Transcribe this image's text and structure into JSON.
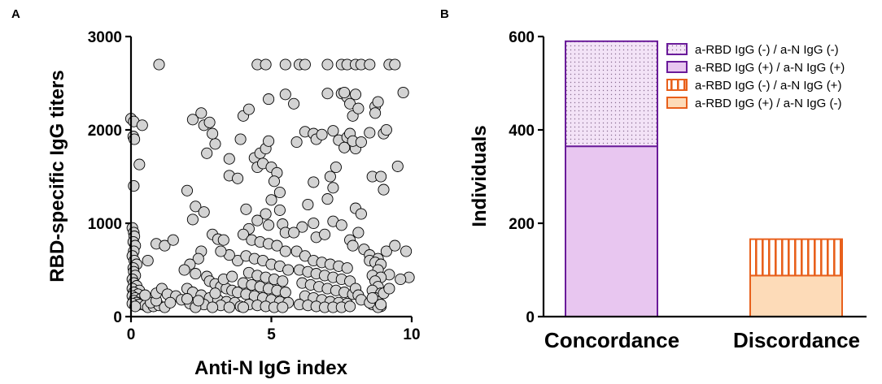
{
  "chart_data": [
    {
      "panel": "A",
      "type": "scatter",
      "xlabel": "Anti-N IgG index",
      "ylabel": "RBD-specific IgG titers",
      "xlim": [
        0,
        10
      ],
      "ylim": [
        0,
        3000
      ],
      "xticks": [
        0,
        5,
        10
      ],
      "yticks": [
        0,
        1000,
        2000,
        3000
      ],
      "points": [
        [
          0,
          2120
        ],
        [
          0.1,
          2090
        ],
        [
          0.08,
          1930
        ],
        [
          0.12,
          1900
        ],
        [
          0.4,
          2050
        ],
        [
          0.3,
          1630
        ],
        [
          0.1,
          1400
        ],
        [
          0.05,
          950
        ],
        [
          0.1,
          900
        ],
        [
          0.12,
          860
        ],
        [
          0.08,
          800
        ],
        [
          0.15,
          760
        ],
        [
          0.1,
          700
        ],
        [
          0.05,
          650
        ],
        [
          0.12,
          600
        ],
        [
          0.2,
          560
        ],
        [
          0.08,
          520
        ],
        [
          0.1,
          480
        ],
        [
          0.15,
          440
        ],
        [
          0.05,
          400
        ],
        [
          0.1,
          360
        ],
        [
          0.2,
          330
        ],
        [
          0.05,
          300
        ],
        [
          0.3,
          280
        ],
        [
          0.1,
          260
        ],
        [
          0.25,
          240
        ],
        [
          0.05,
          220
        ],
        [
          0.15,
          200
        ],
        [
          0.35,
          190
        ],
        [
          0.1,
          170
        ],
        [
          0.4,
          160
        ],
        [
          0.2,
          150
        ],
        [
          0.05,
          140
        ],
        [
          0.3,
          130
        ],
        [
          0.5,
          120
        ],
        [
          0.15,
          110
        ],
        [
          0.6,
          100
        ],
        [
          0.8,
          110
        ],
        [
          1.0,
          120
        ],
        [
          1.2,
          100
        ],
        [
          0.7,
          150
        ],
        [
          0.9,
          170
        ],
        [
          0.6,
          600
        ],
        [
          0.5,
          230
        ],
        [
          0.9,
          250
        ],
        [
          1.1,
          300
        ],
        [
          0.9,
          780
        ],
        [
          1.2,
          760
        ],
        [
          1.5,
          820
        ],
        [
          1.3,
          240
        ],
        [
          1.6,
          220
        ],
        [
          1.8,
          180
        ],
        [
          1.4,
          150
        ],
        [
          1.0,
          2700
        ],
        [
          2.0,
          1350
        ],
        [
          2.2,
          2110
        ],
        [
          2.5,
          2180
        ],
        [
          2.6,
          2050
        ],
        [
          2.8,
          2080
        ],
        [
          3.0,
          1850
        ],
        [
          2.9,
          1960
        ],
        [
          2.7,
          1750
        ],
        [
          3.5,
          1690
        ],
        [
          3.5,
          1510
        ],
        [
          2.3,
          1180
        ],
        [
          2.6,
          1120
        ],
        [
          2.2,
          1040
        ],
        [
          2.9,
          880
        ],
        [
          3.1,
          830
        ],
        [
          3.3,
          820
        ],
        [
          2.5,
          700
        ],
        [
          2.4,
          620
        ],
        [
          2.1,
          560
        ],
        [
          1.9,
          500
        ],
        [
          2.3,
          460
        ],
        [
          2.7,
          430
        ],
        [
          2.8,
          380
        ],
        [
          3.0,
          350
        ],
        [
          3.2,
          320
        ],
        [
          3.4,
          300
        ],
        [
          3.6,
          280
        ],
        [
          3.8,
          260
        ],
        [
          2.0,
          300
        ],
        [
          2.2,
          260
        ],
        [
          2.5,
          230
        ],
        [
          2.8,
          200
        ],
        [
          3.1,
          180
        ],
        [
          3.4,
          160
        ],
        [
          3.7,
          150
        ],
        [
          2.1,
          140
        ],
        [
          2.6,
          130
        ],
        [
          3.2,
          120
        ],
        [
          3.9,
          110
        ],
        [
          2.3,
          100
        ],
        [
          2.9,
          100
        ],
        [
          3.5,
          100
        ],
        [
          2.0,
          190
        ],
        [
          2.4,
          170
        ],
        [
          3.0,
          250
        ],
        [
          3.3,
          400
        ],
        [
          3.6,
          430
        ],
        [
          3.8,
          600
        ],
        [
          3.5,
          660
        ],
        [
          3.2,
          700
        ],
        [
          4.0,
          2150
        ],
        [
          4.2,
          2220
        ],
        [
          3.9,
          1900
        ],
        [
          4.4,
          1700
        ],
        [
          4.1,
          1150
        ],
        [
          3.8,
          1480
        ],
        [
          4.5,
          1600
        ],
        [
          4.6,
          1750
        ],
        [
          4.8,
          1800
        ],
        [
          4.9,
          1880
        ],
        [
          4.7,
          1640
        ],
        [
          5.0,
          1600
        ],
        [
          5.2,
          1540
        ],
        [
          5.1,
          1450
        ],
        [
          5.3,
          1330
        ],
        [
          5.0,
          1250
        ],
        [
          5.3,
          1140
        ],
        [
          4.8,
          1100
        ],
        [
          4.5,
          1030
        ],
        [
          4.9,
          980
        ],
        [
          5.4,
          990
        ],
        [
          5.5,
          900
        ],
        [
          4.2,
          940
        ],
        [
          4.0,
          880
        ],
        [
          4.3,
          820
        ],
        [
          4.6,
          800
        ],
        [
          4.9,
          780
        ],
        [
          5.2,
          760
        ],
        [
          5.5,
          700
        ],
        [
          4.1,
          650
        ],
        [
          4.4,
          620
        ],
        [
          4.7,
          600
        ],
        [
          5.0,
          560
        ],
        [
          5.3,
          540
        ],
        [
          5.6,
          500
        ],
        [
          4.2,
          470
        ],
        [
          4.5,
          440
        ],
        [
          4.8,
          420
        ],
        [
          5.1,
          400
        ],
        [
          5.4,
          380
        ],
        [
          4.0,
          360
        ],
        [
          4.3,
          340
        ],
        [
          4.6,
          320
        ],
        [
          4.9,
          300
        ],
        [
          5.2,
          280
        ],
        [
          5.5,
          260
        ],
        [
          4.1,
          240
        ],
        [
          4.4,
          220
        ],
        [
          4.7,
          200
        ],
        [
          5.0,
          180
        ],
        [
          5.3,
          160
        ],
        [
          5.6,
          150
        ],
        [
          4.2,
          130
        ],
        [
          4.5,
          120
        ],
        [
          4.8,
          110
        ],
        [
          5.1,
          100
        ],
        [
          5.4,
          100
        ],
        [
          4.0,
          100
        ],
        [
          4.5,
          2700
        ],
        [
          4.8,
          2700
        ],
        [
          5.5,
          2700
        ],
        [
          6.0,
          2700
        ],
        [
          6.2,
          2700
        ],
        [
          7.0,
          2700
        ],
        [
          7.5,
          2700
        ],
        [
          7.7,
          2700
        ],
        [
          8.0,
          2700
        ],
        [
          8.2,
          2700
        ],
        [
          8.5,
          2700
        ],
        [
          9.2,
          2700
        ],
        [
          9.4,
          2700
        ],
        [
          4.9,
          2330
        ],
        [
          5.5,
          2380
        ],
        [
          5.8,
          2280
        ],
        [
          5.9,
          1870
        ],
        [
          6.2,
          1980
        ],
        [
          6.5,
          1960
        ],
        [
          6.6,
          1900
        ],
        [
          6.8,
          1950
        ],
        [
          7.0,
          2390
        ],
        [
          7.5,
          2390
        ],
        [
          7.7,
          2350
        ],
        [
          7.8,
          2280
        ],
        [
          7.9,
          2150
        ],
        [
          8.1,
          2230
        ],
        [
          8.0,
          2380
        ],
        [
          7.6,
          2400
        ],
        [
          7.2,
          1990
        ],
        [
          7.4,
          1890
        ],
        [
          7.7,
          1920
        ],
        [
          7.8,
          1960
        ],
        [
          7.6,
          1810
        ],
        [
          8.0,
          1800
        ],
        [
          7.9,
          1880
        ],
        [
          8.2,
          1870
        ],
        [
          8.5,
          1970
        ],
        [
          8.7,
          2250
        ],
        [
          8.8,
          2300
        ],
        [
          8.7,
          2180
        ],
        [
          9.0,
          1960
        ],
        [
          9.1,
          2000
        ],
        [
          9.5,
          1610
        ],
        [
          9.7,
          2400
        ],
        [
          8.6,
          1500
        ],
        [
          8.9,
          1500
        ],
        [
          9.0,
          1360
        ],
        [
          6.5,
          1440
        ],
        [
          7.3,
          1600
        ],
        [
          7.1,
          1500
        ],
        [
          7.0,
          1260
        ],
        [
          7.2,
          1380
        ],
        [
          6.3,
          1200
        ],
        [
          6.5,
          1000
        ],
        [
          6.1,
          960
        ],
        [
          5.8,
          900
        ],
        [
          6.6,
          850
        ],
        [
          6.9,
          880
        ],
        [
          7.2,
          1020
        ],
        [
          7.5,
          980
        ],
        [
          7.8,
          820
        ],
        [
          8.0,
          1160
        ],
        [
          8.2,
          1100
        ],
        [
          8.1,
          900
        ],
        [
          7.9,
          760
        ],
        [
          8.3,
          720
        ],
        [
          8.5,
          660
        ],
        [
          8.8,
          620
        ],
        [
          9.1,
          700
        ],
        [
          9.4,
          760
        ],
        [
          9.8,
          700
        ],
        [
          9.9,
          420
        ],
        [
          9.6,
          400
        ],
        [
          9.2,
          450
        ],
        [
          5.9,
          700
        ],
        [
          6.2,
          650
        ],
        [
          6.5,
          600
        ],
        [
          6.8,
          580
        ],
        [
          7.1,
          560
        ],
        [
          7.4,
          540
        ],
        [
          7.7,
          520
        ],
        [
          6.0,
          500
        ],
        [
          6.3,
          480
        ],
        [
          6.6,
          460
        ],
        [
          6.9,
          440
        ],
        [
          7.2,
          420
        ],
        [
          7.5,
          400
        ],
        [
          7.8,
          380
        ],
        [
          6.1,
          360
        ],
        [
          6.4,
          340
        ],
        [
          6.7,
          320
        ],
        [
          7.0,
          300
        ],
        [
          7.3,
          280
        ],
        [
          7.6,
          260
        ],
        [
          7.9,
          240
        ],
        [
          6.2,
          220
        ],
        [
          6.5,
          200
        ],
        [
          6.8,
          180
        ],
        [
          7.1,
          160
        ],
        [
          7.4,
          150
        ],
        [
          7.7,
          140
        ],
        [
          6.0,
          130
        ],
        [
          6.3,
          120
        ],
        [
          6.6,
          110
        ],
        [
          6.9,
          100
        ],
        [
          7.2,
          100
        ],
        [
          7.5,
          100
        ],
        [
          7.8,
          110
        ],
        [
          8.0,
          300
        ],
        [
          8.1,
          230
        ],
        [
          8.2,
          180
        ],
        [
          8.5,
          600
        ],
        [
          8.7,
          580
        ],
        [
          8.9,
          560
        ],
        [
          8.8,
          500
        ],
        [
          8.6,
          440
        ],
        [
          8.9,
          420
        ],
        [
          8.7,
          380
        ],
        [
          8.8,
          320
        ],
        [
          8.6,
          280
        ],
        [
          8.9,
          250
        ],
        [
          8.7,
          200
        ],
        [
          8.8,
          160
        ],
        [
          8.6,
          130
        ],
        [
          8.9,
          110
        ],
        [
          8.8,
          100
        ],
        [
          8.5,
          150
        ],
        [
          8.6,
          200
        ],
        [
          9.0,
          250
        ],
        [
          9.2,
          300
        ],
        [
          8.9,
          130
        ]
      ]
    },
    {
      "panel": "B",
      "type": "bar",
      "stacked": true,
      "ylabel": "Individuals",
      "ylim": [
        0,
        600
      ],
      "yticks": [
        0,
        200,
        400,
        600
      ],
      "categories": [
        "Concordance",
        "Discordance"
      ],
      "series": [
        {
          "name": "a-RBD IgG (+) / a-N IgG (+)",
          "values": [
            365,
            0
          ],
          "fill": "#e8c6f0",
          "stroke": "#6a1b9a",
          "pattern": "solid"
        },
        {
          "name": "a-RBD IgG (-) / a-N IgG (-)",
          "values": [
            225,
            0
          ],
          "fill": "#f3e3f7",
          "stroke": "#6a1b9a",
          "pattern": "dots"
        },
        {
          "name": "a-RBD IgG (+) / a-N IgG (-)",
          "values": [
            0,
            88
          ],
          "fill": "#fddbb8",
          "stroke": "#e8601c",
          "pattern": "solid"
        },
        {
          "name": "a-RBD IgG (-) / a-N IgG (+)",
          "values": [
            0,
            78
          ],
          "fill": "#ffffff",
          "stroke": "#e8601c",
          "pattern": "vertical-stripes"
        }
      ],
      "legend": [
        "a-RBD IgG (-) / a-N IgG (-)",
        "a-RBD IgG (+) / a-N IgG (+)",
        "a-RBD IgG (-) / a-N IgG (+)",
        "a-RBD IgG (+) / a-N IgG (-)"
      ],
      "legend_position": "top-right"
    }
  ],
  "panel_labels": [
    "A",
    "B"
  ]
}
